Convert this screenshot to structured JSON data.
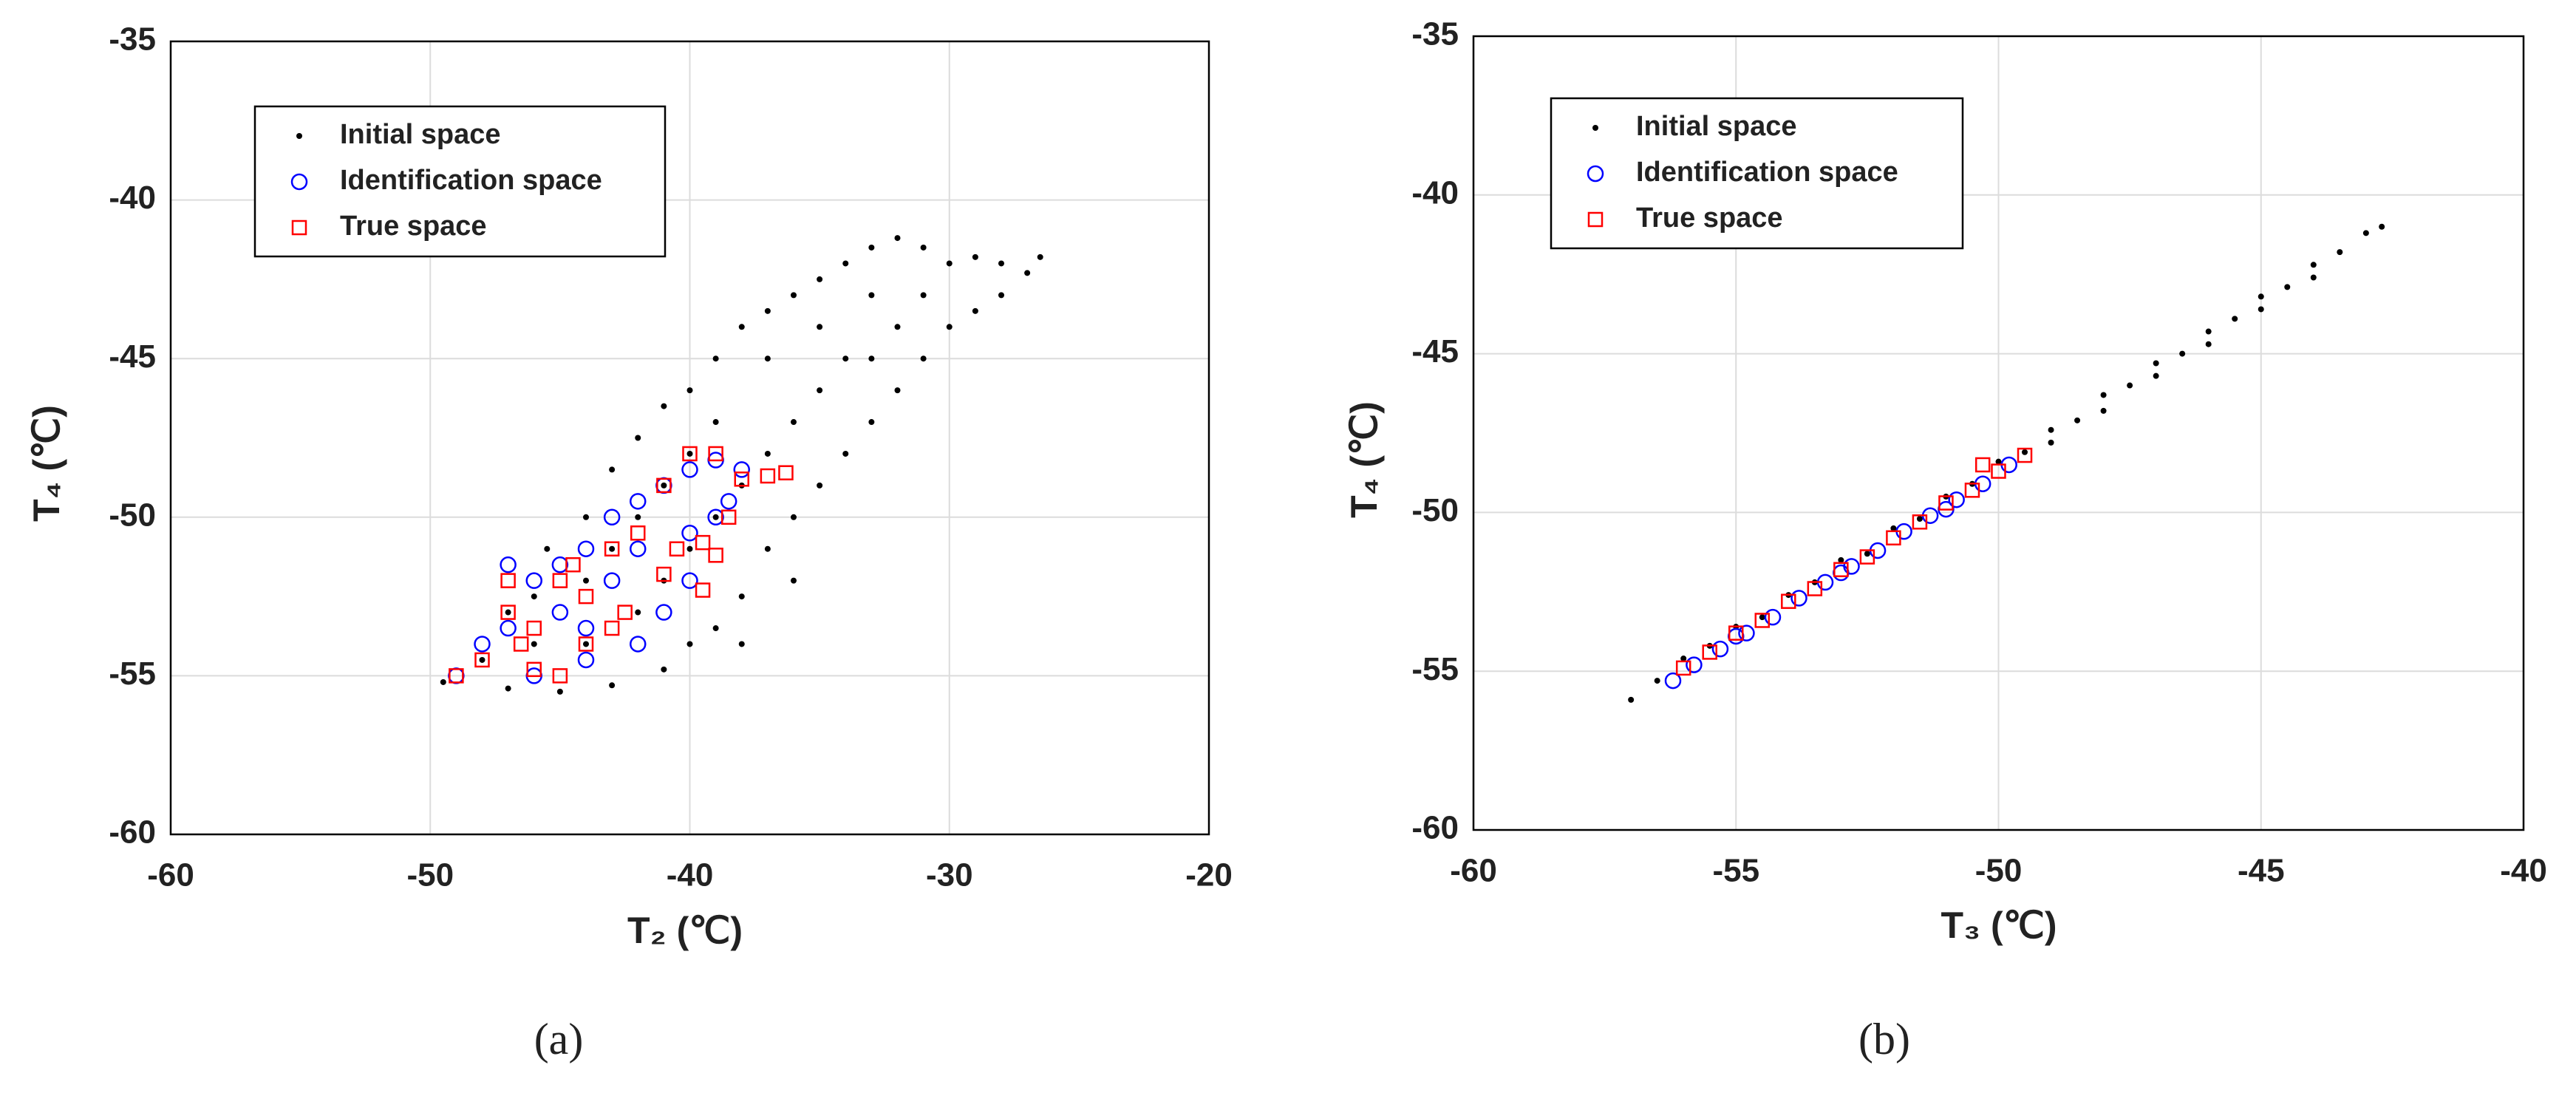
{
  "chart_data": [
    {
      "type": "scatter",
      "xlabel": "T₂ (℃)",
      "ylabel": "T₄ (℃)",
      "caption": "(a)",
      "xlim": [
        -60,
        -20
      ],
      "xticks": [
        -60,
        -50,
        -40,
        -30,
        -20
      ],
      "ylim": [
        -60,
        -35
      ],
      "yticks": [
        -60,
        -55,
        -50,
        -45,
        -40,
        -35
      ],
      "grid": true,
      "legend": "upper left",
      "series": [
        {
          "name": "Initial space",
          "color": "#000000",
          "marker": "dot",
          "x": [
            -49.5,
            -48,
            -47,
            -46,
            -45.5,
            -44,
            -43,
            -42,
            -41,
            -40,
            -39,
            -38,
            -37,
            -36,
            -35,
            -34,
            -33,
            -32,
            -31,
            -30,
            -29,
            -28,
            -27,
            -26.5,
            -28,
            -30,
            -31,
            -32,
            -33,
            -34,
            -35,
            -36,
            -37,
            -38,
            -39,
            -40,
            -41,
            -43,
            -45,
            -47,
            -44,
            -42,
            -40,
            -38,
            -36,
            -34,
            -32,
            -35,
            -37,
            -39,
            -41,
            -43,
            -41,
            -39,
            -37,
            -35,
            -33,
            -40,
            -42,
            -44,
            -46,
            -36,
            -38,
            -31,
            -29,
            -33
          ],
          "values": [
            -55.2,
            -54.5,
            -53,
            -52.5,
            -51,
            -50,
            -48.5,
            -47.5,
            -46.5,
            -46,
            -45,
            -44,
            -43.5,
            -43,
            -42.5,
            -42,
            -41.5,
            -41.2,
            -41.5,
            -42,
            -41.8,
            -42,
            -42.3,
            -41.8,
            -43,
            -44,
            -45,
            -46,
            -47,
            -48,
            -49,
            -50,
            -51,
            -52.5,
            -53.5,
            -54,
            -54.8,
            -55.3,
            -55.5,
            -55.4,
            -54,
            -53,
            -51,
            -49,
            -47,
            -45,
            -44,
            -46,
            -48,
            -50,
            -52,
            -51,
            -49,
            -47,
            -45,
            -44,
            -43,
            -48,
            -50,
            -52,
            -54,
            -52,
            -54,
            -43,
            -43.5,
            -45
          ]
        },
        {
          "name": "Identification space",
          "color": "#0000ff",
          "marker": "circle",
          "x": [
            -49,
            -48,
            -47,
            -46,
            -45,
            -44,
            -43,
            -42,
            -41,
            -40,
            -39,
            -38,
            -39,
            -40,
            -41,
            -42,
            -44,
            -46,
            -43,
            -45,
            -47,
            -40,
            -38.5,
            -44,
            -42
          ],
          "values": [
            -55,
            -54,
            -53.5,
            -52,
            -51.5,
            -51,
            -50,
            -49.5,
            -49,
            -48.5,
            -48.2,
            -48.5,
            -50,
            -52,
            -53,
            -54,
            -54.5,
            -55,
            -52,
            -53,
            -51.5,
            -50.5,
            -49.5,
            -53.5,
            -51
          ]
        },
        {
          "name": "True space",
          "color": "#ff0000",
          "marker": "square",
          "x": [
            -49,
            -48,
            -47,
            -46,
            -45,
            -44,
            -43,
            -42,
            -41,
            -40,
            -39,
            -38,
            -37,
            -36.3,
            -39.5,
            -39.5,
            -41,
            -42.5,
            -44,
            -46,
            -45,
            -43,
            -47,
            -40.5,
            -38.5,
            -39,
            -44.5,
            -46.5
          ],
          "values": [
            -55,
            -54.5,
            -53,
            -53.5,
            -52,
            -52.5,
            -51,
            -50.5,
            -49,
            -48,
            -48,
            -48.8,
            -48.7,
            -48.6,
            -52.3,
            -50.8,
            -51.8,
            -53,
            -54,
            -54.8,
            -55,
            -53.5,
            -52,
            -51,
            -50,
            -51.2,
            -51.5,
            -54
          ]
        }
      ]
    },
    {
      "type": "scatter",
      "xlabel": "T₃ (℃)",
      "ylabel": "T₄ (℃)",
      "caption": "(b)",
      "xlim": [
        -60,
        -40
      ],
      "xticks": [
        -60,
        -55,
        -50,
        -45,
        -40
      ],
      "ylim": [
        -60,
        -35
      ],
      "yticks": [
        -60,
        -55,
        -50,
        -45,
        -40,
        -35
      ],
      "grid": true,
      "legend": "upper left",
      "series": [
        {
          "name": "Initial space",
          "color": "#000000",
          "marker": "dot",
          "x": [
            -57,
            -56.5,
            -56,
            -55.5,
            -55,
            -54.5,
            -54,
            -53.5,
            -53,
            -52.5,
            -52,
            -51.5,
            -51,
            -50.5,
            -50,
            -49.5,
            -49,
            -48.5,
            -48,
            -47.5,
            -47,
            -46.5,
            -46,
            -45.5,
            -45,
            -44.5,
            -44,
            -43.5,
            -43,
            -42.7,
            -49,
            -48,
            -47,
            -46,
            -45,
            -44
          ],
          "values": [
            -55.9,
            -55.3,
            -54.6,
            -54.2,
            -53.6,
            -53.3,
            -52.6,
            -52.2,
            -51.5,
            -51.3,
            -50.5,
            -50.2,
            -49.5,
            -49.1,
            -48.4,
            -48.1,
            -47.4,
            -47.1,
            -46.3,
            -46,
            -45.3,
            -45,
            -44.3,
            -43.9,
            -43.2,
            -42.9,
            -42.2,
            -41.8,
            -41.2,
            -41,
            -47.8,
            -46.8,
            -45.7,
            -44.7,
            -43.6,
            -42.6
          ]
        },
        {
          "name": "Identification space",
          "color": "#0000ff",
          "marker": "circle",
          "x": [
            -56.2,
            -55.8,
            -55.3,
            -54.8,
            -54.3,
            -53.8,
            -53.3,
            -52.8,
            -52.3,
            -51.8,
            -51.3,
            -50.8,
            -50.3,
            -49.8,
            -55,
            -53,
            -51
          ],
          "values": [
            -55.3,
            -54.8,
            -54.3,
            -53.8,
            -53.3,
            -52.7,
            -52.2,
            -51.7,
            -51.2,
            -50.6,
            -50.1,
            -49.6,
            -49.1,
            -48.5,
            -53.9,
            -51.9,
            -49.9
          ]
        },
        {
          "name": "True space",
          "color": "#ff0000",
          "marker": "square",
          "x": [
            -56,
            -55.5,
            -55,
            -54.5,
            -54,
            -53.5,
            -53,
            -52.5,
            -52,
            -51.5,
            -51,
            -50.5,
            -50,
            -49.5,
            -50.3
          ],
          "values": [
            -54.9,
            -54.4,
            -53.8,
            -53.4,
            -52.8,
            -52.4,
            -51.8,
            -51.4,
            -50.8,
            -50.3,
            -49.7,
            -49.3,
            -48.7,
            -48.2,
            -48.5
          ]
        }
      ]
    }
  ]
}
